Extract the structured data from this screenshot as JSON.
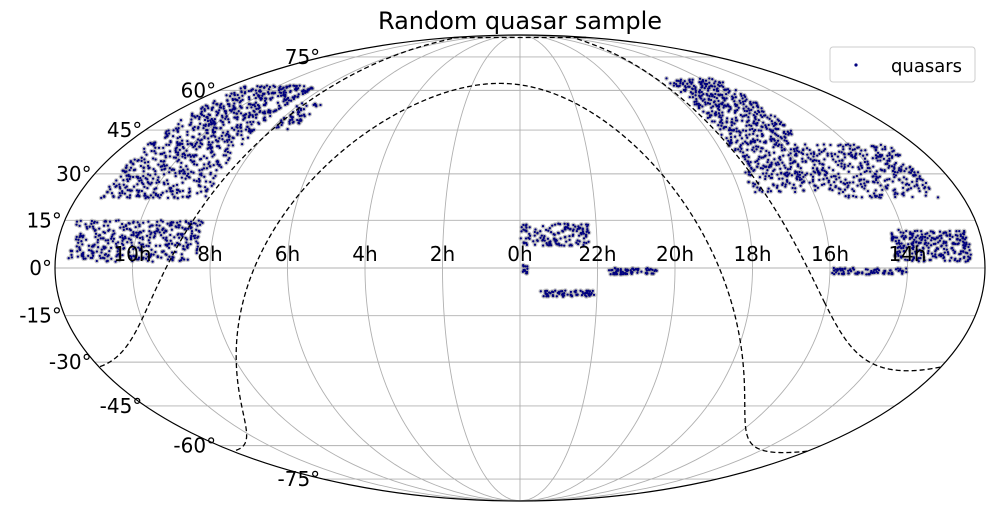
{
  "chart_data": {
    "type": "scatter",
    "projection": "mollweide",
    "title": "Random quasar sample",
    "legend": {
      "placement": "top-right",
      "entries": [
        "quasars"
      ]
    },
    "grid": true,
    "x_tick_labels": [
      "10h",
      "8h",
      "6h",
      "4h",
      "2h",
      "0h",
      "22h",
      "20h",
      "18h",
      "16h",
      "14h"
    ],
    "x_tick_ra_hours": [
      10,
      8,
      6,
      4,
      2,
      0,
      22,
      20,
      18,
      16,
      14
    ],
    "y_tick_labels": [
      "75°",
      "60°",
      "45°",
      "30°",
      "15°",
      "0°",
      "-15°",
      "-30°",
      "-45°",
      "-60°",
      "-75°"
    ],
    "y_tick_dec_deg": [
      75,
      60,
      45,
      30,
      15,
      0,
      -15,
      -30,
      -45,
      -60,
      -75
    ],
    "colors": {
      "points": "#00007f",
      "point_halo": "#9a9a9a",
      "grid": "#b0b0b0",
      "curve": "#000000",
      "frame": "#000000"
    },
    "series": [
      {
        "name": "quasars",
        "regions": [
          {
            "ra_min": 127,
            "ra_max": 170,
            "dec_min": 22,
            "dec_max": 62,
            "n": 760
          },
          {
            "ra_min": 125,
            "ra_max": 175,
            "dec_min": 2,
            "dec_max": 15,
            "n": 380
          },
          {
            "ra_min": 126,
            "ra_max": 130,
            "dec_min": 52,
            "dec_max": 62,
            "n": 35
          },
          {
            "ra_min": 108,
            "ra_max": 120,
            "dec_min": 45,
            "dec_max": 55,
            "n": 50
          },
          {
            "ra_min": 357,
            "ra_max": 359,
            "dec_min": -2,
            "dec_max": 1,
            "n": 12
          },
          {
            "ra_min": 333,
            "ra_max": 360,
            "dec_min": 7,
            "dec_max": 14,
            "n": 140
          },
          {
            "ra_min": 307,
            "ra_max": 326,
            "dec_min": -2,
            "dec_max": 0,
            "n": 70
          },
          {
            "ra_min": 331,
            "ra_max": 352,
            "dec_min": -9,
            "dec_max": -7,
            "n": 70
          },
          {
            "ra_min": 230,
            "ra_max": 265,
            "dec_min": 24,
            "dec_max": 65,
            "n": 680
          },
          {
            "ra_min": 190,
            "ra_max": 230,
            "dec_min": 22,
            "dec_max": 40,
            "n": 300
          },
          {
            "ra_min": 185,
            "ra_max": 215,
            "dec_min": 2,
            "dec_max": 12,
            "n": 260
          },
          {
            "ra_min": 210,
            "ra_max": 240,
            "dec_min": -2,
            "dec_max": 0,
            "n": 80
          }
        ]
      }
    ],
    "curves": [
      {
        "name": "galactic-plane",
        "style": "dashed"
      },
      {
        "name": "galactic-b30",
        "style": "dashed"
      }
    ]
  }
}
